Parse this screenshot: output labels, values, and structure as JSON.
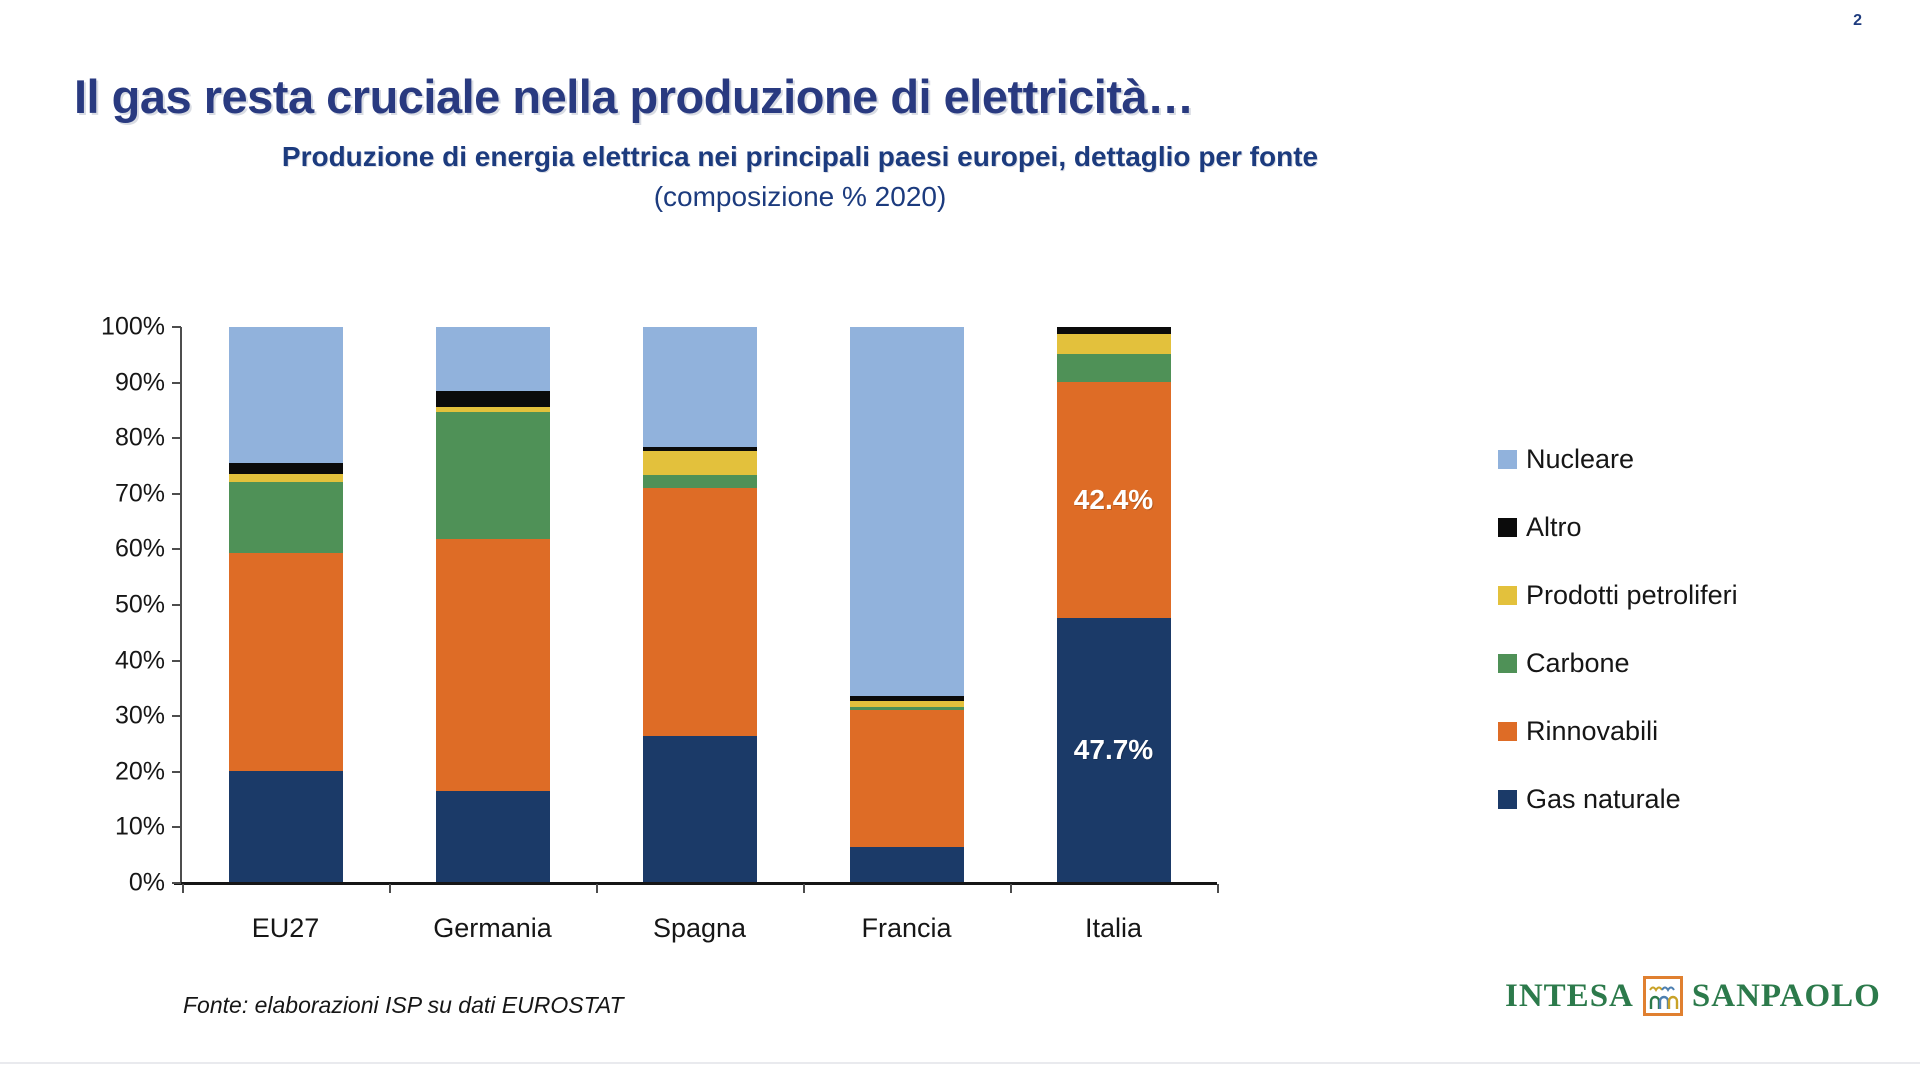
{
  "page": {
    "number": "2"
  },
  "title": "Il gas resta cruciale nella produzione di elettricità…",
  "chart_title": {
    "line1": "Produzione di energia elettrica nei principali paesi europei, dettaglio per fonte",
    "line2": "(composizione % 2020)"
  },
  "footer": {
    "source": "Fonte: elaborazioni ISP su dati EUROSTAT"
  },
  "logo": {
    "part1": "INTESA",
    "part2": "SANPAOLO"
  },
  "colors": {
    "title_blue": "#293a80",
    "subtitle_blue": "#1c3b7e",
    "logo_green": "#2c7a4b",
    "logo_orange": "#e08030"
  },
  "chart_data": {
    "type": "bar",
    "stacked": true,
    "title": "Produzione di energia elettrica nei principali paesi europei, dettaglio per fonte",
    "subtitle": "(composizione % 2020)",
    "categories": [
      "EU27",
      "Germania",
      "Spagna",
      "Francia",
      "Italia"
    ],
    "y_axis": {
      "min": 0,
      "max": 100,
      "step": 10,
      "unit": "%",
      "grid": false
    },
    "legend_position": "right",
    "legend_order_note": "legend shown top-to-bottom as reverse of stacking order",
    "series": [
      {
        "name": "Gas naturale",
        "color": "#1b3a68",
        "values": [
          20.2,
          16.5,
          26.5,
          6.5,
          47.7
        ],
        "value_labels": [
          null,
          null,
          null,
          null,
          "47.7%"
        ]
      },
      {
        "name": "Rinnovabili",
        "color": "#de6c26",
        "values": [
          39.2,
          45.3,
          44.5,
          24.6,
          42.4
        ],
        "value_labels": [
          null,
          null,
          null,
          null,
          "42.4%"
        ]
      },
      {
        "name": "Carbone",
        "color": "#4f9157",
        "values": [
          12.7,
          22.9,
          2.4,
          0.6,
          5.0
        ]
      },
      {
        "name": "Prodotti petroliferi",
        "color": "#e3c13c",
        "values": [
          1.4,
          0.9,
          4.3,
          1.1,
          3.7
        ]
      },
      {
        "name": "Altro",
        "color": "#0b0b0b",
        "values": [
          2.1,
          2.9,
          0.8,
          0.8,
          1.2
        ]
      },
      {
        "name": "Nucleare",
        "color": "#91b2dc",
        "values": [
          24.4,
          11.5,
          21.5,
          66.4,
          0
        ]
      }
    ]
  }
}
